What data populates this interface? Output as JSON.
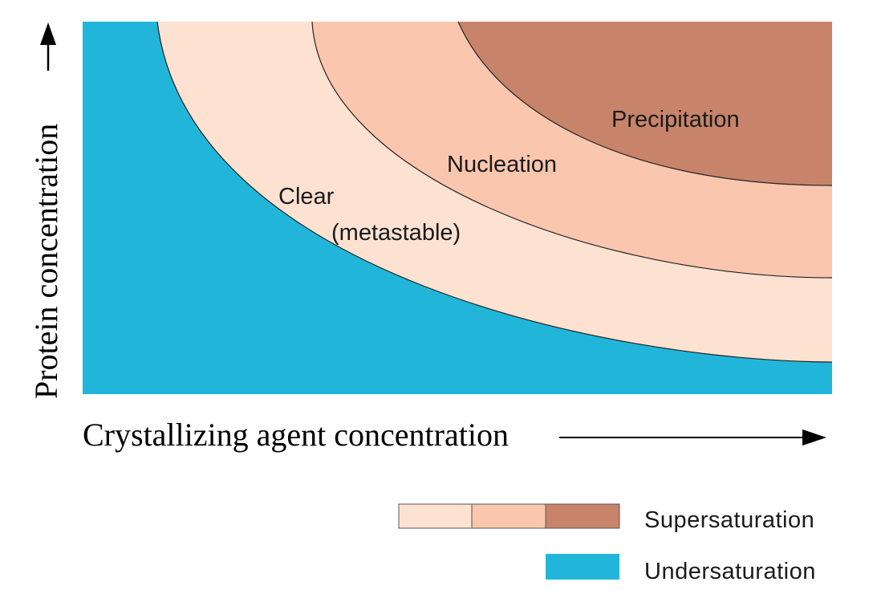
{
  "colors": {
    "undersaturation": "#21b6d9",
    "clear": "#fde2d2",
    "nucleation": "#fbc6ae",
    "precipitation": "#c8846a"
  },
  "regions": {
    "precipitation": "Precipitation",
    "nucleation": "Nucleation",
    "clear_line1": "Clear",
    "clear_line2": "(metastable)"
  },
  "axes": {
    "x_label": "Crystallizing agent concentration",
    "y_label": "Protein concentration",
    "x_arrow_icon": "arrow-right-icon",
    "y_arrow_icon": "arrow-up-icon"
  },
  "legend": {
    "supersaturation_label": "Supersaturation",
    "undersaturation_label": "Undersaturation"
  }
}
